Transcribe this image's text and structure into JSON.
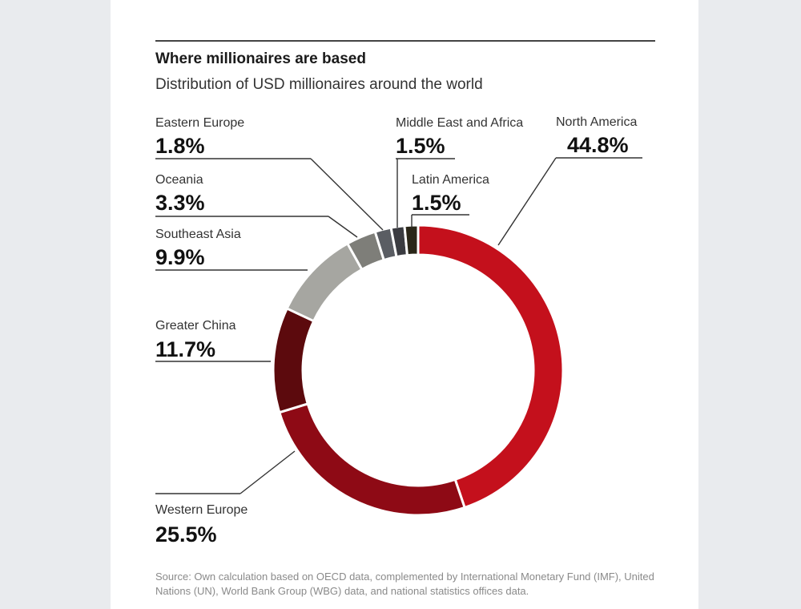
{
  "title": "Where millionaires are based",
  "subtitle": "Distribution of USD millionaires around the world",
  "source": "Source: Own calculation based on OECD data, complemented by International Monetary Fund (IMF), United Nations (UN), World Bank Group (WBG) data, and national statistics offices data.",
  "chart_data": {
    "type": "pie",
    "donut": true,
    "categories": [
      "North America",
      "Western Europe",
      "Greater China",
      "Southeast Asia",
      "Oceania",
      "Eastern Europe",
      "Middle East and Africa",
      "Latin America"
    ],
    "values": [
      44.8,
      25.5,
      11.7,
      9.9,
      3.3,
      1.8,
      1.5,
      1.5
    ],
    "value_labels": [
      "44.8%",
      "25.5%",
      "11.7%",
      "9.9%",
      "3.3%",
      "1.8%",
      "1.5%",
      "1.5%"
    ],
    "colors": [
      "#c4101c",
      "#8e0a15",
      "#5c0a0d",
      "#a6a6a1",
      "#7e7e79",
      "#5a5d63",
      "#3b3c41",
      "#2a2618"
    ],
    "start_angle_deg": 0,
    "direction": "clockwise"
  }
}
